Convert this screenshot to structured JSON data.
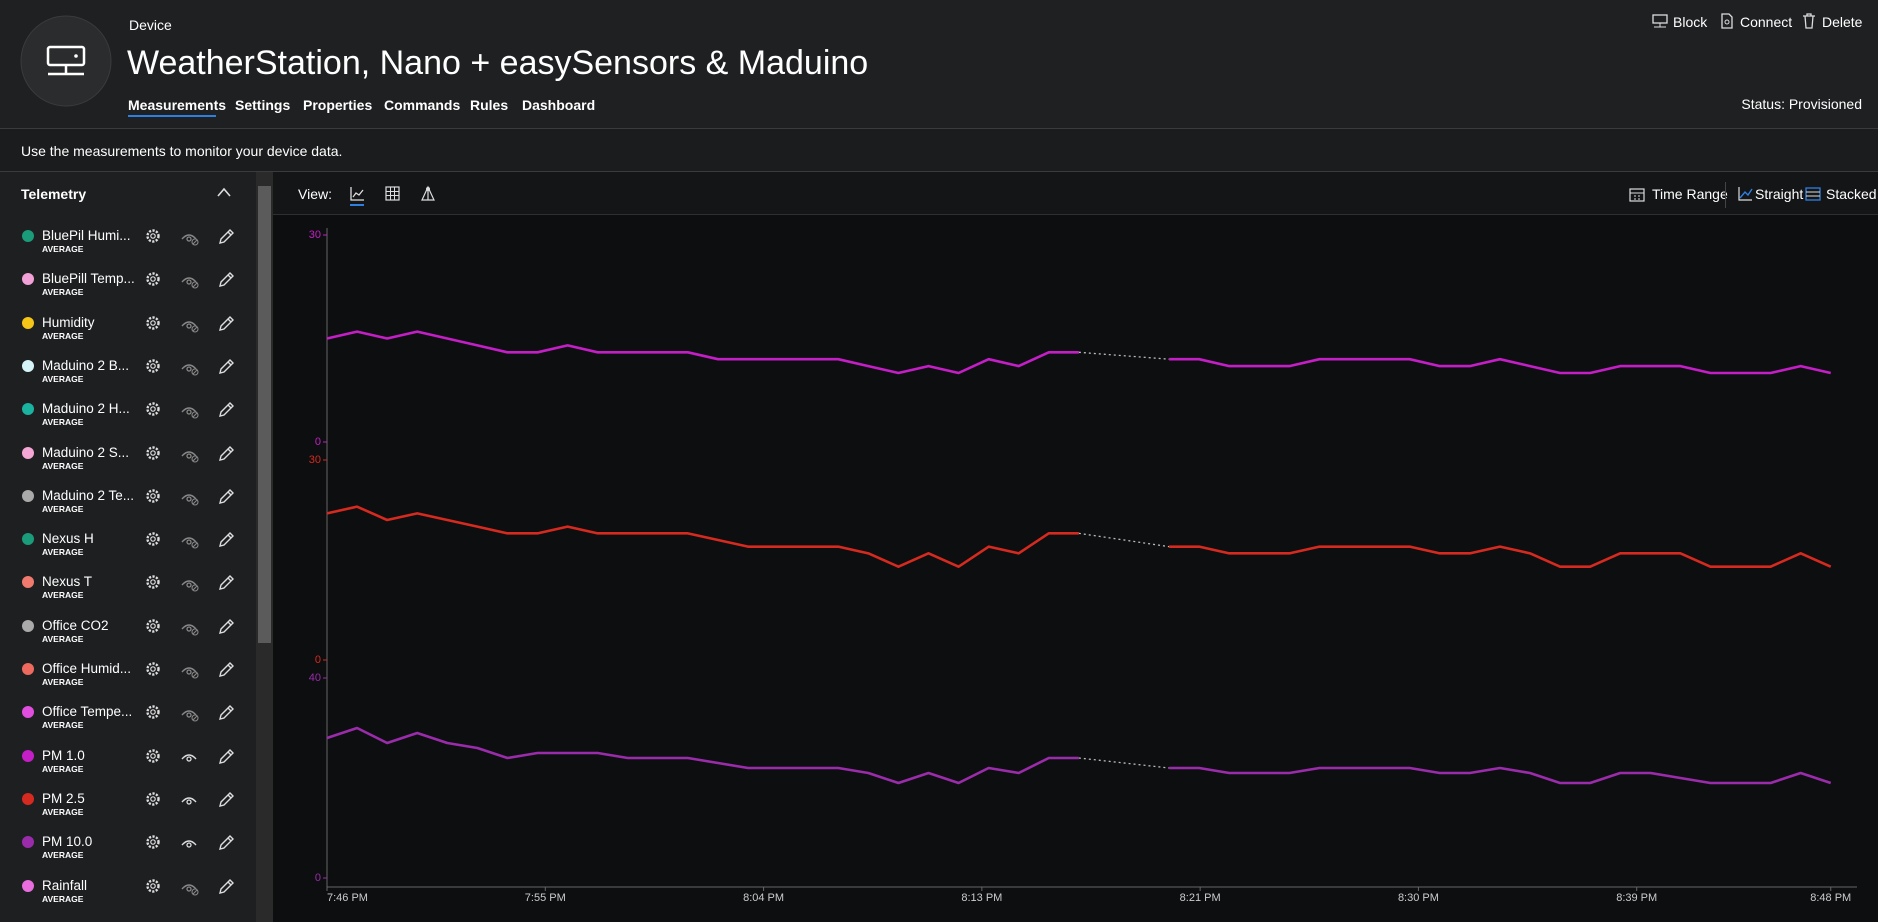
{
  "header": {
    "eyebrow": "Device",
    "title": "WeatherStation, Nano + easySensors & Maduino",
    "status": "Status: Provisioned"
  },
  "tabs": [
    "Measurements",
    "Settings",
    "Properties",
    "Commands",
    "Rules",
    "Dashboard"
  ],
  "actions": [
    "Block",
    "Connect",
    "Delete"
  ],
  "description": "Use the measurements to monitor your device data.",
  "telemetry": {
    "title": "Telemetry",
    "items": [
      {
        "name": "BluePil Humi...",
        "aggregation": "AVERAGE",
        "color": "#1a9b7a",
        "visible": false
      },
      {
        "name": "BluePill Temp...",
        "aggregation": "AVERAGE",
        "color": "#f2a0d8",
        "visible": false
      },
      {
        "name": "Humidity",
        "aggregation": "AVERAGE",
        "color": "#f5c518",
        "visible": false
      },
      {
        "name": "Maduino 2 B...",
        "aggregation": "AVERAGE",
        "color": "#d6f5fa",
        "visible": false
      },
      {
        "name": "Maduino 2 H...",
        "aggregation": "AVERAGE",
        "color": "#19b3a0",
        "visible": false
      },
      {
        "name": "Maduino 2 S...",
        "aggregation": "AVERAGE",
        "color": "#f4a6d7",
        "visible": false
      },
      {
        "name": "Maduino 2 Te...",
        "aggregation": "AVERAGE",
        "color": "#aaaaaa",
        "visible": false
      },
      {
        "name": "Nexus H",
        "aggregation": "AVERAGE",
        "color": "#1a9b7a",
        "visible": false
      },
      {
        "name": "Nexus T",
        "aggregation": "AVERAGE",
        "color": "#f07a6e",
        "visible": false
      },
      {
        "name": "Office CO2",
        "aggregation": "AVERAGE",
        "color": "#aaaaaa",
        "visible": false
      },
      {
        "name": "Office Humid...",
        "aggregation": "AVERAGE",
        "color": "#ee6a5f",
        "visible": false
      },
      {
        "name": "Office Tempe...",
        "aggregation": "AVERAGE",
        "color": "#e04ee0",
        "visible": false
      },
      {
        "name": "PM 1.0",
        "aggregation": "AVERAGE",
        "color": "#c41ec7",
        "visible": true
      },
      {
        "name": "PM 2.5",
        "aggregation": "AVERAGE",
        "color": "#d52a1f",
        "visible": true
      },
      {
        "name": "PM 10.0",
        "aggregation": "AVERAGE",
        "color": "#9a2cab",
        "visible": true
      },
      {
        "name": "Rainfall",
        "aggregation": "AVERAGE",
        "color": "#e86ee0",
        "visible": false
      }
    ]
  },
  "toolbar": {
    "view_label": "View:",
    "time_range": "Time Range",
    "straight": "Straight",
    "stacked": "Stacked"
  },
  "chart_data": {
    "type": "line",
    "x": [
      0,
      1.24,
      2.48,
      3.72,
      4.96,
      6.2,
      7.44,
      8.68,
      9.92,
      11.16,
      12.4,
      13.64,
      14.88,
      16.12,
      17.36,
      18.6,
      19.84,
      21.08,
      22.32,
      23.56,
      24.8,
      26.04,
      27.28,
      28.52,
      29.76,
      31,
      32.24,
      33.48,
      34.72,
      35.96,
      37.2,
      38.44,
      39.68,
      40.92,
      42.16,
      43.4,
      44.64,
      45.88,
      47.12,
      48.36,
      49.6,
      50.84,
      52.08,
      53.32,
      54.56,
      55.8,
      57.04,
      58.28,
      59.52,
      60.76,
      62
    ],
    "xlim": [
      0,
      63
    ],
    "xticks": [
      {
        "value": 0,
        "label": "7:46 PM"
      },
      {
        "value": 9,
        "label": "7:55 PM"
      },
      {
        "value": 18,
        "label": "8:04 PM"
      },
      {
        "value": 27,
        "label": "8:13 PM"
      },
      {
        "value": 36,
        "label": "8:21 PM"
      },
      {
        "value": 45,
        "label": "8:30 PM"
      },
      {
        "value": 54,
        "label": "8:39 PM"
      },
      {
        "value": 62,
        "label": "8:48 PM"
      }
    ],
    "series": [
      {
        "color": "#c41ec7",
        "ylim": [
          0,
          30
        ],
        "yticks": [
          0,
          30
        ],
        "values": [
          15,
          16,
          15,
          16,
          15,
          14,
          13,
          13,
          14,
          13,
          13,
          13,
          13,
          12,
          12,
          12,
          12,
          12,
          11,
          10,
          11,
          10,
          12,
          11,
          13,
          13,
          null,
          null,
          12,
          12,
          11,
          11,
          11,
          12,
          12,
          12,
          12,
          11,
          11,
          12,
          11,
          10,
          10,
          11,
          11,
          11,
          10,
          10,
          10,
          11,
          10
        ]
      },
      {
        "color": "#d52a1f",
        "ylim": [
          0,
          30
        ],
        "yticks": [
          0,
          30
        ],
        "values": [
          22,
          23,
          21,
          22,
          21,
          20,
          19,
          19,
          20,
          19,
          19,
          19,
          19,
          18,
          17,
          17,
          17,
          17,
          16,
          14,
          16,
          14,
          17,
          16,
          19,
          19,
          null,
          null,
          17,
          17,
          16,
          16,
          16,
          17,
          17,
          17,
          17,
          16,
          16,
          17,
          16,
          14,
          14,
          16,
          16,
          16,
          14,
          14,
          14,
          16,
          14
        ]
      },
      {
        "color": "#9a2cab",
        "ylim": [
          0,
          40
        ],
        "yticks": [
          0,
          40
        ],
        "values": [
          28,
          30,
          27,
          29,
          27,
          26,
          24,
          25,
          25,
          25,
          24,
          24,
          24,
          23,
          22,
          22,
          22,
          22,
          21,
          19,
          21,
          19,
          22,
          21,
          24,
          24,
          null,
          null,
          22,
          22,
          21,
          21,
          21,
          22,
          22,
          22,
          22,
          21,
          21,
          22,
          21,
          19,
          19,
          21,
          21,
          20,
          19,
          19,
          19,
          21,
          19
        ]
      }
    ]
  }
}
